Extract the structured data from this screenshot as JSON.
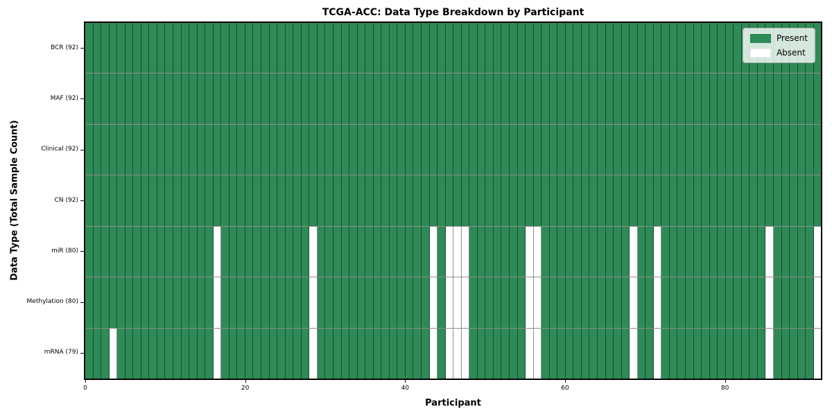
{
  "chart_data": {
    "type": "heatmap",
    "title": "TCGA-ACC: Data Type Breakdown by Participant",
    "xlabel": "Participant",
    "ylabel": "Data Type (Total Sample Count)",
    "n_participants": 92,
    "x_range": [
      0,
      92
    ],
    "x_ticks": [
      0,
      20,
      40,
      60,
      80
    ],
    "grid": "cell-borders",
    "legend_position": "upper right",
    "rows": [
      {
        "label": "BCR (92)",
        "present_count": 92,
        "absent_participants": []
      },
      {
        "label": "MAF (92)",
        "present_count": 92,
        "absent_participants": []
      },
      {
        "label": "Clinical (92)",
        "present_count": 92,
        "absent_participants": []
      },
      {
        "label": "CN (92)",
        "present_count": 92,
        "absent_participants": []
      },
      {
        "label": "miR (80)",
        "present_count": 80,
        "absent_participants": [
          16,
          28,
          43,
          45,
          46,
          47,
          55,
          56,
          68,
          71,
          85,
          91
        ]
      },
      {
        "label": "Methylation (80)",
        "present_count": 80,
        "absent_participants": [
          16,
          28,
          43,
          45,
          46,
          47,
          55,
          56,
          68,
          71,
          85,
          91
        ]
      },
      {
        "label": "mRNA (79)",
        "present_count": 79,
        "absent_participants": [
          3,
          16,
          28,
          43,
          45,
          46,
          47,
          55,
          56,
          68,
          71,
          85,
          91
        ]
      }
    ],
    "legend": [
      {
        "label": "Present",
        "color": "#2e8b57"
      },
      {
        "label": "Absent",
        "color": "#ffffff"
      }
    ],
    "colors": {
      "present": "#2e8b57",
      "absent": "#ffffff",
      "cell_border": "rgba(0,0,0,0.45)",
      "spine": "#000000",
      "legend_bg": "rgba(255,255,255,0.8)"
    }
  }
}
